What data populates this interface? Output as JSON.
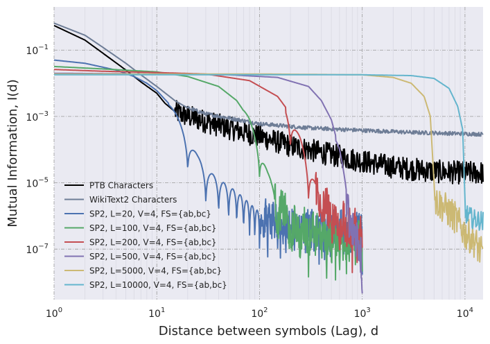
{
  "chart_data": {
    "type": "line",
    "title": "",
    "xlabel": "Distance between symbols (Lag), d",
    "ylabel": "Mutual Information, I(d)",
    "xscale": "log",
    "yscale": "log",
    "xlim": [
      1,
      15000
    ],
    "ylim": [
      3e-09,
      2
    ],
    "x_ticks": [
      {
        "value": 1,
        "base": "10",
        "exp": "0"
      },
      {
        "value": 10,
        "base": "10",
        "exp": "1"
      },
      {
        "value": 100,
        "base": "10",
        "exp": "2"
      },
      {
        "value": 1000,
        "base": "10",
        "exp": "3"
      },
      {
        "value": 10000,
        "base": "10",
        "exp": "4"
      }
    ],
    "y_ticks": [
      {
        "value": 1e-07,
        "base": "10",
        "exp": "−7"
      },
      {
        "value": 1e-05,
        "base": "10",
        "exp": "−5"
      },
      {
        "value": 0.001,
        "base": "10",
        "exp": "−3"
      },
      {
        "value": 0.1,
        "base": "10",
        "exp": "−1"
      }
    ],
    "grid": true,
    "legend_position": "lower-left",
    "series": [
      {
        "name": "PTB Characters",
        "color": "#000000",
        "points": [
          [
            1,
            0.55
          ],
          [
            2,
            0.2
          ],
          [
            3,
            0.08
          ],
          [
            5,
            0.025
          ],
          [
            7,
            0.011
          ],
          [
            10,
            0.005
          ],
          [
            12,
            0.0025
          ],
          [
            15,
            0.0014
          ],
          [
            20,
            0.001
          ],
          [
            30,
            0.0007
          ],
          [
            50,
            0.00045
          ],
          [
            100,
            0.00025
          ],
          [
            200,
            0.00013
          ],
          [
            500,
            7e-05
          ],
          [
            1000,
            4.5e-05
          ],
          [
            2000,
            3e-05
          ],
          [
            5000,
            2.2e-05
          ],
          [
            10000,
            2e-05
          ],
          [
            15000,
            2e-05
          ]
        ],
        "noise": 0.35,
        "noise_from": 15
      },
      {
        "name": "WikiText2 Characters",
        "color": "#6e7d96",
        "points": [
          [
            1,
            0.65
          ],
          [
            2,
            0.28
          ],
          [
            3,
            0.12
          ],
          [
            5,
            0.04
          ],
          [
            7,
            0.018
          ],
          [
            10,
            0.008
          ],
          [
            15,
            0.003
          ],
          [
            20,
            0.0018
          ],
          [
            30,
            0.0012
          ],
          [
            50,
            0.0009
          ],
          [
            100,
            0.0006
          ],
          [
            300,
            0.00045
          ],
          [
            1000,
            0.00038
          ],
          [
            3000,
            0.00033
          ],
          [
            10000,
            0.0003
          ],
          [
            15000,
            0.00029
          ]
        ],
        "noise": 0.06,
        "noise_from": 20
      },
      {
        "name": "SP2, L=20, V=4, FS={ab,bc}",
        "color": "#4c72b0",
        "points": [
          [
            1,
            0.05
          ],
          [
            2,
            0.04
          ],
          [
            4,
            0.025
          ],
          [
            6,
            0.016
          ],
          [
            8,
            0.01
          ],
          [
            10,
            0.006
          ],
          [
            13,
            0.0025
          ],
          [
            16,
            0.0009
          ],
          [
            20,
            0.00025
          ],
          [
            25,
            6e-05
          ],
          [
            30,
            2.5e-05
          ],
          [
            40,
            1.2e-05
          ],
          [
            60,
            5e-06
          ],
          [
            100,
            1.2e-06
          ],
          [
            150,
            7e-07
          ],
          [
            200,
            6e-07
          ],
          [
            1000,
            5e-07
          ]
        ],
        "oscillate_from": 13,
        "oscillate_period": 20,
        "noise": 0.5,
        "noise_from": 100,
        "x_end": 1000
      },
      {
        "name": "SP2, L=100, V=4, FS={ab,bc}",
        "color": "#55a868",
        "points": [
          [
            1,
            0.032
          ],
          [
            3,
            0.027
          ],
          [
            10,
            0.022
          ],
          [
            20,
            0.016
          ],
          [
            40,
            0.008
          ],
          [
            60,
            0.003
          ],
          [
            80,
            0.0008
          ],
          [
            100,
            0.00015
          ],
          [
            120,
            2e-05
          ],
          [
            150,
            3e-06
          ],
          [
            200,
            6e-07
          ],
          [
            1000,
            2e-07
          ]
        ],
        "oscillate_from": 70,
        "oscillate_period": 100,
        "noise": 0.6,
        "noise_from": 140,
        "x_end": 1000
      },
      {
        "name": "SP2, L=200, V=4, FS={ab,bc}",
        "color": "#c44e52",
        "points": [
          [
            1,
            0.026
          ],
          [
            3,
            0.023
          ],
          [
            10,
            0.021
          ],
          [
            30,
            0.019
          ],
          [
            80,
            0.012
          ],
          [
            150,
            0.004
          ],
          [
            200,
            0.0012
          ],
          [
            250,
            0.0002
          ],
          [
            300,
            3e-05
          ],
          [
            400,
            3e-06
          ],
          [
            600,
            8e-07
          ],
          [
            1000,
            3e-07
          ]
        ],
        "oscillate_from": 180,
        "oscillate_period": 200,
        "noise": 0.6,
        "noise_from": 350,
        "x_end": 1000
      },
      {
        "name": "SP2, L=500, V=4, FS={ab,bc}",
        "color": "#8172b2",
        "points": [
          [
            1,
            0.02
          ],
          [
            10,
            0.019
          ],
          [
            50,
            0.018
          ],
          [
            150,
            0.015
          ],
          [
            300,
            0.008
          ],
          [
            400,
            0.003
          ],
          [
            500,
            0.0008
          ],
          [
            600,
            0.0001
          ],
          [
            700,
            8e-06
          ],
          [
            800,
            5e-07
          ],
          [
            1000,
            1e-07
          ]
        ],
        "oscillate_from": 550,
        "oscillate_period": 500,
        "noise": 0.7,
        "noise_from": 700,
        "x_end": 1000
      },
      {
        "name": "SP2, L=5000, V=4, FS={ab,bc}",
        "color": "#ccb974",
        "points": [
          [
            1,
            0.019
          ],
          [
            10,
            0.019
          ],
          [
            100,
            0.019
          ],
          [
            1000,
            0.018
          ],
          [
            2000,
            0.015
          ],
          [
            3000,
            0.01
          ],
          [
            4000,
            0.004
          ],
          [
            4600,
            0.001
          ],
          [
            5000,
            1e-05
          ],
          [
            5100,
            3e-06
          ],
          [
            6000,
            2e-06
          ],
          [
            8000,
            9e-07
          ],
          [
            10000,
            3e-07
          ],
          [
            12000,
            2e-07
          ],
          [
            15000,
            6e-08
          ]
        ],
        "noise": 0.5,
        "noise_from": 5100
      },
      {
        "name": "SP2, L=10000, V=4, FS={ab,bc}",
        "color": "#64b5cd",
        "points": [
          [
            1,
            0.018
          ],
          [
            10,
            0.018
          ],
          [
            100,
            0.018
          ],
          [
            1000,
            0.018
          ],
          [
            3000,
            0.017
          ],
          [
            5000,
            0.014
          ],
          [
            7000,
            0.007
          ],
          [
            8500,
            0.002
          ],
          [
            9500,
            0.0004
          ],
          [
            10000,
            3e-06
          ],
          [
            10100,
            1.2e-06
          ],
          [
            12000,
            8e-07
          ],
          [
            15000,
            7e-07
          ]
        ],
        "noise": 0.3,
        "noise_from": 10100
      }
    ]
  }
}
